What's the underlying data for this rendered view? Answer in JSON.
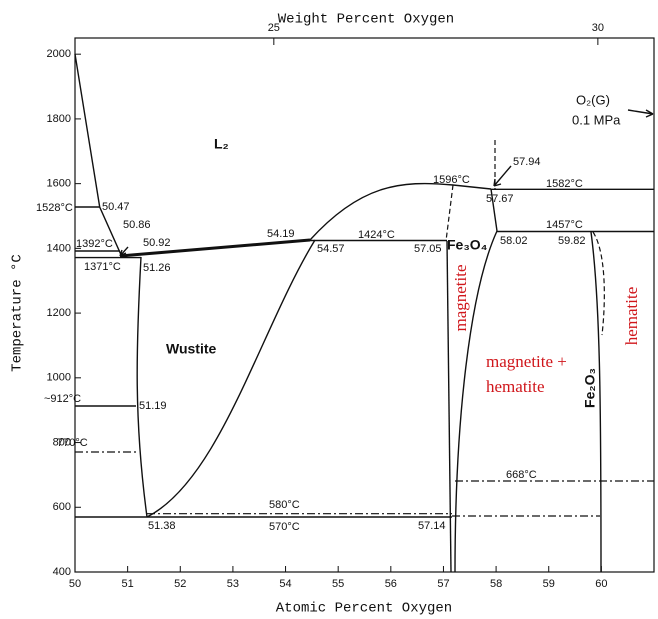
{
  "chart_data": {
    "type": "phase-diagram",
    "x_label": "Atomic Percent Oxygen",
    "x2_label": "Weight Percent Oxygen",
    "y_label": "Temperature °C",
    "xlim": [
      50,
      61
    ],
    "xticks": [
      50,
      51,
      52,
      53,
      54,
      55,
      56,
      57,
      58,
      59,
      60
    ],
    "x2ticks": [
      25,
      30
    ],
    "ylim": [
      400,
      2050
    ],
    "yticks": [
      400,
      600,
      800,
      1000,
      1200,
      1400,
      1600,
      1800,
      2000
    ],
    "point_labels": [
      "1528°C",
      "50.47",
      "50.86",
      "1392°C",
      "50.92",
      "1371°C",
      "51.26",
      "54.19",
      "54.57",
      "1424°C",
      "57.05",
      "1596°C",
      "57.94",
      "57.67",
      "1582°C",
      "1457°C",
      "58.02",
      "59.82",
      "~912°C",
      "51.19",
      "770°C",
      "668°C",
      "580°C",
      "51.38",
      "570°C",
      "57.14",
      "O₂(G)",
      "0.1 MPa"
    ],
    "region_labels": [
      "L₂",
      "Wustite",
      "Fe₃O₄",
      "Fe₂O₃"
    ],
    "phase_notes": [
      "magnetite",
      "magnetite +",
      "hematite",
      "hematite"
    ]
  }
}
